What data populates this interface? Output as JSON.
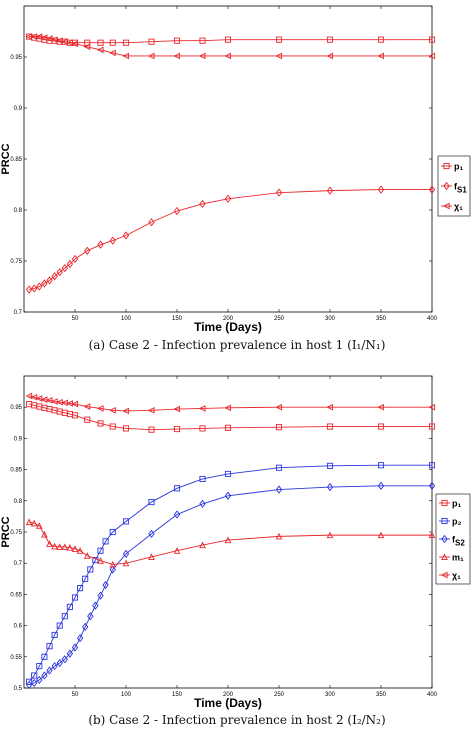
{
  "chart_data": [
    {
      "type": "line",
      "xlabel": "Time (Days)",
      "ylabel": "PRCC",
      "xlim": [
        0,
        400
      ],
      "ylim": [
        0.7,
        1.0
      ],
      "xticks": [
        "50",
        "100",
        "150",
        "200",
        "250",
        "300",
        "350",
        "400"
      ],
      "yticks": [
        "0.7",
        "0.75",
        "0.8",
        "0.85",
        "0.9",
        "0.95"
      ],
      "caption": "(a) Case 2 - Infection prevalence in host 1 (I₁/N₁)",
      "grid": false,
      "legend_position": "right",
      "series": [
        {
          "name": "p₁",
          "color": "#e8262b",
          "marker": "square",
          "x": [
            5,
            10,
            15,
            20,
            25,
            30,
            35,
            40,
            45,
            50,
            62,
            75,
            87,
            100,
            125,
            150,
            175,
            200,
            250,
            300,
            350,
            400
          ],
          "y": [
            0.97,
            0.969,
            0.968,
            0.967,
            0.966,
            0.966,
            0.965,
            0.965,
            0.964,
            0.964,
            0.964,
            0.964,
            0.964,
            0.964,
            0.965,
            0.966,
            0.966,
            0.967,
            0.967,
            0.967,
            0.967,
            0.967
          ]
        },
        {
          "name": "f_S1",
          "color": "#e8262b",
          "marker": "diamond",
          "x": [
            5,
            10,
            15,
            20,
            25,
            30,
            35,
            40,
            45,
            50,
            62,
            75,
            87,
            100,
            125,
            150,
            175,
            200,
            250,
            300,
            350,
            400
          ],
          "y": [
            0.722,
            0.723,
            0.725,
            0.728,
            0.731,
            0.735,
            0.739,
            0.743,
            0.747,
            0.752,
            0.76,
            0.766,
            0.77,
            0.775,
            0.788,
            0.799,
            0.806,
            0.811,
            0.817,
            0.819,
            0.82,
            0.82
          ]
        },
        {
          "name": "χ₁",
          "color": "#e8262b",
          "marker": "triangle-left",
          "x": [
            5,
            10,
            15,
            20,
            25,
            30,
            35,
            40,
            45,
            50,
            62,
            75,
            87,
            100,
            125,
            150,
            175,
            200,
            250,
            300,
            350,
            400
          ],
          "y": [
            0.97,
            0.97,
            0.97,
            0.969,
            0.968,
            0.967,
            0.966,
            0.965,
            0.964,
            0.963,
            0.96,
            0.957,
            0.954,
            0.951,
            0.951,
            0.951,
            0.951,
            0.951,
            0.951,
            0.951,
            0.951,
            0.951
          ]
        }
      ]
    },
    {
      "type": "line",
      "xlabel": "Time (Days)",
      "ylabel": "PRCC",
      "xlim": [
        0,
        400
      ],
      "ylim": [
        0.5,
        1.0
      ],
      "xticks": [
        "50",
        "100",
        "150",
        "200",
        "250",
        "300",
        "350",
        "400"
      ],
      "yticks": [
        "0.5",
        "0.55",
        "0.6",
        "0.65",
        "0.7",
        "0.75",
        "0.8",
        "0.85",
        "0.9",
        "0.95"
      ],
      "caption": "(b) Case 2 - Infection prevalence in host 2 (I₂/N₂)",
      "grid": false,
      "legend_position": "right",
      "series": [
        {
          "name": "p₁",
          "color": "#e8262b",
          "marker": "square",
          "x": [
            5,
            10,
            15,
            20,
            25,
            30,
            35,
            40,
            45,
            50,
            62,
            75,
            87,
            100,
            125,
            150,
            175,
            200,
            250,
            300,
            350,
            400
          ],
          "y": [
            0.955,
            0.953,
            0.951,
            0.949,
            0.947,
            0.945,
            0.943,
            0.941,
            0.939,
            0.937,
            0.93,
            0.924,
            0.919,
            0.916,
            0.914,
            0.915,
            0.916,
            0.917,
            0.918,
            0.919,
            0.919,
            0.919
          ]
        },
        {
          "name": "p₂",
          "color": "#2a35e0",
          "marker": "square",
          "x": [
            5,
            10,
            15,
            20,
            25,
            30,
            35,
            40,
            45,
            50,
            55,
            60,
            65,
            70,
            75,
            80,
            87,
            100,
            125,
            150,
            175,
            200,
            250,
            300,
            350,
            400
          ],
          "y": [
            0.51,
            0.52,
            0.535,
            0.55,
            0.567,
            0.585,
            0.6,
            0.615,
            0.63,
            0.645,
            0.66,
            0.675,
            0.69,
            0.705,
            0.72,
            0.735,
            0.75,
            0.767,
            0.798,
            0.82,
            0.835,
            0.843,
            0.853,
            0.856,
            0.857,
            0.857
          ]
        },
        {
          "name": "f_S2",
          "color": "#2a35e0",
          "marker": "diamond",
          "x": [
            5,
            10,
            15,
            20,
            25,
            30,
            35,
            40,
            45,
            50,
            55,
            60,
            65,
            70,
            75,
            80,
            87,
            100,
            125,
            150,
            175,
            200,
            250,
            300,
            350,
            400
          ],
          "y": [
            0.505,
            0.508,
            0.513,
            0.52,
            0.528,
            0.535,
            0.54,
            0.546,
            0.555,
            0.565,
            0.58,
            0.598,
            0.615,
            0.632,
            0.648,
            0.665,
            0.69,
            0.715,
            0.747,
            0.778,
            0.795,
            0.808,
            0.818,
            0.822,
            0.824,
            0.824
          ]
        },
        {
          "name": "m₁",
          "color": "#e8262b",
          "marker": "triangle-up",
          "x": [
            5,
            10,
            15,
            20,
            25,
            30,
            35,
            40,
            45,
            50,
            55,
            62,
            75,
            87,
            100,
            125,
            150,
            175,
            200,
            250,
            300,
            350,
            400
          ],
          "y": [
            0.766,
            0.764,
            0.76,
            0.746,
            0.731,
            0.727,
            0.726,
            0.726,
            0.725,
            0.723,
            0.72,
            0.712,
            0.704,
            0.698,
            0.7,
            0.71,
            0.72,
            0.729,
            0.737,
            0.743,
            0.745,
            0.745,
            0.745
          ]
        },
        {
          "name": "χ₁",
          "color": "#e8262b",
          "marker": "triangle-left",
          "x": [
            5,
            10,
            15,
            20,
            25,
            30,
            35,
            40,
            45,
            50,
            62,
            75,
            87,
            100,
            125,
            150,
            175,
            200,
            250,
            300,
            350,
            400
          ],
          "y": [
            0.968,
            0.966,
            0.964,
            0.962,
            0.961,
            0.959,
            0.958,
            0.957,
            0.956,
            0.955,
            0.951,
            0.948,
            0.945,
            0.944,
            0.945,
            0.947,
            0.948,
            0.949,
            0.95,
            0.95,
            0.95,
            0.95
          ]
        }
      ]
    }
  ]
}
